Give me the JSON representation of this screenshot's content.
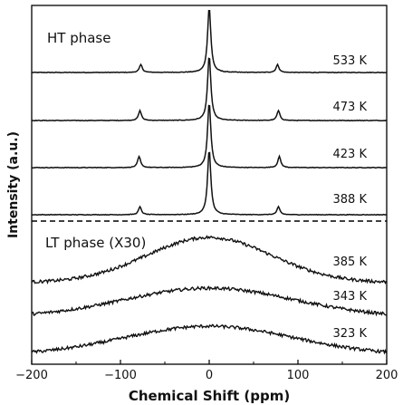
{
  "chart_data": {
    "type": "line",
    "xlabel": "Chemical Shift (ppm)",
    "ylabel": "Intensity (a.u.)",
    "xlim": [
      -200,
      200
    ],
    "x_ticks": [
      -200,
      -100,
      0,
      100,
      200
    ],
    "grid": false,
    "legend": "none",
    "line_color": "#111111",
    "panels": [
      {
        "label": "HT phase",
        "spectra": [
          {
            "temperature": "533 K",
            "peaks_ppm": [
              -77,
              0,
              77
            ],
            "relative_peak_heights": [
              0.12,
              1.0,
              0.12
            ]
          },
          {
            "temperature": "473 K",
            "peaks_ppm": [
              -78,
              0,
              78
            ],
            "relative_peak_heights": [
              0.15,
              1.0,
              0.15
            ]
          },
          {
            "temperature": "423 K",
            "peaks_ppm": [
              -79,
              0,
              79
            ],
            "relative_peak_heights": [
              0.17,
              1.0,
              0.17
            ]
          },
          {
            "temperature": "388 K",
            "peaks_ppm": [
              -78,
              0,
              78
            ],
            "relative_peak_heights": [
              0.12,
              1.0,
              0.12
            ]
          }
        ]
      },
      {
        "label": "LT phase (X30)",
        "spectra": [
          {
            "temperature": "385 K",
            "peak_ppm": 0,
            "line_shape": "broad, centred at 0 ppm"
          },
          {
            "temperature": "343 K",
            "peak_ppm": 0,
            "line_shape": "broad, centred at 0 ppm"
          },
          {
            "temperature": "323 K",
            "peak_ppm": 0,
            "line_shape": "broad, centred at 0 ppm"
          }
        ]
      }
    ]
  }
}
